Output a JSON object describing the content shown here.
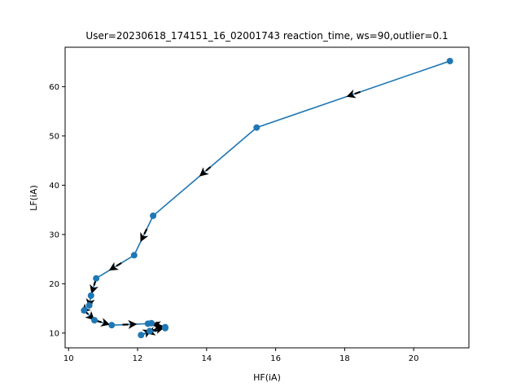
{
  "chart_data": {
    "type": "line",
    "title": "User=20230618_174151_16_02001743 reaction_time, ws=90,outlier=0.1",
    "xlabel": "HF(iA)",
    "ylabel": "LF(iA)",
    "xlim": [
      9.9,
      21.6
    ],
    "ylim": [
      7.0,
      68.0
    ],
    "xticks": [
      10,
      12,
      14,
      16,
      18,
      20
    ],
    "yticks": [
      10,
      20,
      30,
      40,
      50,
      60
    ],
    "grid": false,
    "arrows": true,
    "series": [
      {
        "color": "#1f77b4",
        "points": [
          [
            21.05,
            65.2
          ],
          [
            15.45,
            51.7
          ],
          [
            12.45,
            33.8
          ],
          [
            11.9,
            25.8
          ],
          [
            10.8,
            21.1
          ],
          [
            10.65,
            17.6
          ],
          [
            10.6,
            15.6
          ],
          [
            10.45,
            14.6
          ],
          [
            10.75,
            12.6
          ],
          [
            11.25,
            11.6
          ],
          [
            12.3,
            11.9
          ],
          [
            12.8,
            11.0
          ],
          [
            12.1,
            9.6
          ],
          [
            12.35,
            10.4
          ],
          [
            12.8,
            11.2
          ],
          [
            12.4,
            12.0
          ]
        ]
      }
    ]
  }
}
